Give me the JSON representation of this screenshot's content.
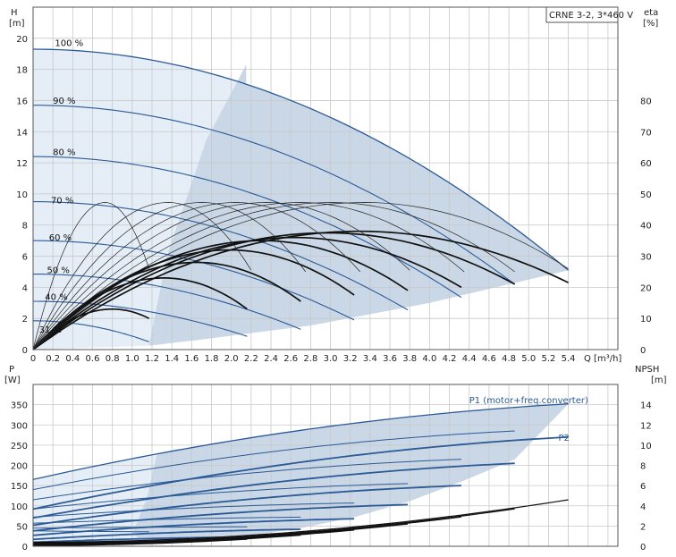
{
  "colors": {
    "envelope": "#c9d7e6",
    "envelope_light": "#e5eef7",
    "qh_curve": "#2b5a96",
    "eta_curve": "#111111",
    "grid": "#c8c8c8"
  },
  "chart_data": [
    {
      "type": "line",
      "name": "qh_eta",
      "title": "CRNE 3-2, 3*460 V",
      "ylabel_left": [
        "H",
        "[m]"
      ],
      "ylabel_right": [
        "eta",
        "[%]"
      ],
      "xlabel": "Q [m³/h]",
      "xlim": [
        0,
        5.9
      ],
      "ylim": [
        0,
        22
      ],
      "y2lim": [
        0,
        110
      ],
      "grid": true,
      "x_ticks": [
        "0",
        "0.2",
        "0.4",
        "0.6",
        "0.8",
        "1.0",
        "1.2",
        "1.4",
        "1.6",
        "1.8",
        "2.0",
        "2.2",
        "2.4",
        "2.6",
        "2.8",
        "3.0",
        "3.2",
        "3.4",
        "3.6",
        "3.8",
        "4.0",
        "4.2",
        "4.4",
        "4.6",
        "4.8",
        "5.0",
        "5.2",
        "5.4"
      ],
      "y_ticks": [
        "0",
        "2",
        "4",
        "6",
        "8",
        "10",
        "12",
        "14",
        "16",
        "18",
        "20"
      ],
      "y2_ticks": [
        "0",
        "10",
        "20",
        "30",
        "40",
        "50",
        "60",
        "70",
        "80"
      ],
      "speed_labels": [
        {
          "text": "100 %",
          "q": 0.22,
          "h": 19.5
        },
        {
          "text": "90 %",
          "q": 0.2,
          "h": 15.8
        },
        {
          "text": "80 %",
          "q": 0.2,
          "h": 12.5
        },
        {
          "text": "70 %",
          "q": 0.18,
          "h": 9.4
        },
        {
          "text": "60 %",
          "q": 0.16,
          "h": 7.0
        },
        {
          "text": "50 %",
          "q": 0.14,
          "h": 4.9
        },
        {
          "text": "40 %",
          "q": 0.12,
          "h": 3.2
        },
        {
          "text": "31 %",
          "q": 0.06,
          "h": 1.1
        }
      ],
      "qh_series": [
        {
          "speed": 1.0,
          "h0": 19.3,
          "q_end": 5.4,
          "h_end": 5.1
        },
        {
          "speed": 0.9,
          "h0": 15.7,
          "q_end": 4.86,
          "h_end": 4.2
        },
        {
          "speed": 0.8,
          "h0": 12.4,
          "q_end": 4.32,
          "h_end": 3.35
        },
        {
          "speed": 0.7,
          "h0": 9.5,
          "q_end": 3.78,
          "h_end": 2.55
        },
        {
          "speed": 0.6,
          "h0": 7.0,
          "q_end": 3.24,
          "h_end": 1.9
        },
        {
          "speed": 0.5,
          "h0": 4.85,
          "q_end": 2.7,
          "h_end": 1.3
        },
        {
          "speed": 0.4,
          "h0": 3.1,
          "q_end": 2.16,
          "h_end": 0.85
        },
        {
          "speed": 0.31,
          "h0": 1.85,
          "q_end": 1.17,
          "h_end": 0.5
        }
      ],
      "eta_series": [
        {
          "speed": 1.0,
          "q_end": 5.4,
          "eta_peak": 38,
          "q_peak": 3.3,
          "eta_end": 21.5
        },
        {
          "speed": 0.9,
          "q_end": 4.86,
          "eta_peak": 37.5,
          "q_peak": 2.97,
          "eta_end": 21
        },
        {
          "speed": 0.8,
          "q_end": 4.32,
          "eta_peak": 36,
          "q_peak": 2.64,
          "eta_end": 20
        },
        {
          "speed": 0.7,
          "q_end": 3.78,
          "eta_peak": 35,
          "q_peak": 2.31,
          "eta_end": 19
        },
        {
          "speed": 0.6,
          "q_end": 3.24,
          "eta_peak": 32,
          "q_peak": 1.98,
          "eta_end": 17.5
        },
        {
          "speed": 0.5,
          "q_end": 2.7,
          "eta_peak": 28,
          "q_peak": 1.65,
          "eta_end": 15.5
        },
        {
          "speed": 0.4,
          "q_end": 2.16,
          "eta_peak": 23,
          "q_peak": 1.32,
          "eta_end": 13
        },
        {
          "speed": 0.31,
          "q_end": 1.17,
          "eta_peak": 13,
          "q_peak": 0.8,
          "eta_end": 10
        }
      ],
      "eta_thin_peak_h": 9.45
    },
    {
      "type": "line",
      "name": "power_npsh",
      "ylabel_left": [
        "P",
        "[W]"
      ],
      "ylabel_right": [
        "NPSH",
        "[m]"
      ],
      "xlim": [
        0,
        5.9
      ],
      "ylim": [
        0,
        400
      ],
      "y2lim": [
        0,
        16
      ],
      "grid": true,
      "y_ticks": [
        "0",
        "50",
        "100",
        "150",
        "200",
        "250",
        "300",
        "350"
      ],
      "y2_ticks": [
        "0",
        "2",
        "4",
        "6",
        "8",
        "10",
        "12",
        "14"
      ],
      "series_labels": [
        {
          "text": "P1 (motor+freq.converter)",
          "q": 4.4,
          "p": 362
        },
        {
          "text": "P2",
          "q": 5.3,
          "p": 270
        }
      ],
      "p1_series": [
        {
          "speed": 1.0,
          "p_start": 165,
          "p_end": 352,
          "q_end": 5.4
        },
        {
          "speed": 0.9,
          "p_start": 140,
          "p_end": 285,
          "q_end": 4.86
        },
        {
          "speed": 0.8,
          "p_start": 115,
          "p_end": 215,
          "q_end": 4.32
        },
        {
          "speed": 0.7,
          "p_start": 92,
          "p_end": 155,
          "q_end": 3.78
        },
        {
          "speed": 0.6,
          "p_start": 72,
          "p_end": 107,
          "q_end": 3.24
        },
        {
          "speed": 0.5,
          "p_start": 57,
          "p_end": 72,
          "q_end": 2.7
        },
        {
          "speed": 0.4,
          "p_start": 45,
          "p_end": 48,
          "q_end": 2.16
        },
        {
          "speed": 0.31,
          "p_start": 38,
          "p_end": 36,
          "q_end": 1.17
        }
      ],
      "p2_series": [
        {
          "speed": 1.0,
          "p_start": 92,
          "p_end": 270,
          "q_end": 5.4
        },
        {
          "speed": 0.9,
          "p_start": 70,
          "p_end": 205,
          "q_end": 4.86
        },
        {
          "speed": 0.8,
          "p_start": 52,
          "p_end": 150,
          "q_end": 4.32
        },
        {
          "speed": 0.7,
          "p_start": 38,
          "p_end": 103,
          "q_end": 3.78
        },
        {
          "speed": 0.6,
          "p_start": 27,
          "p_end": 68,
          "q_end": 3.24
        },
        {
          "speed": 0.5,
          "p_start": 17,
          "p_end": 42,
          "q_end": 2.7
        },
        {
          "speed": 0.4,
          "p_start": 10,
          "p_end": 23,
          "q_end": 2.16
        },
        {
          "speed": 0.31,
          "p_start": 6,
          "p_end": 12,
          "q_end": 1.17
        }
      ],
      "npsh_series": [
        {
          "speed": 1.0,
          "n_start": 0.4,
          "n_end": 4.6,
          "q_end": 5.4
        },
        {
          "speed": 0.9,
          "n_start": 0.3,
          "n_end": 3.7,
          "q_end": 4.86
        },
        {
          "speed": 0.8,
          "n_start": 0.25,
          "n_end": 2.9,
          "q_end": 4.32
        },
        {
          "speed": 0.7,
          "n_start": 0.2,
          "n_end": 2.2,
          "q_end": 3.78
        },
        {
          "speed": 0.6,
          "n_start": 0.15,
          "n_end": 1.6,
          "q_end": 3.24
        },
        {
          "speed": 0.5,
          "n_start": 0.1,
          "n_end": 1.1,
          "q_end": 2.7
        },
        {
          "speed": 0.4,
          "n_start": 0.08,
          "n_end": 0.7,
          "q_end": 2.16
        },
        {
          "speed": 0.31,
          "n_start": 0.05,
          "n_end": 0.4,
          "q_end": 1.17
        }
      ]
    }
  ]
}
